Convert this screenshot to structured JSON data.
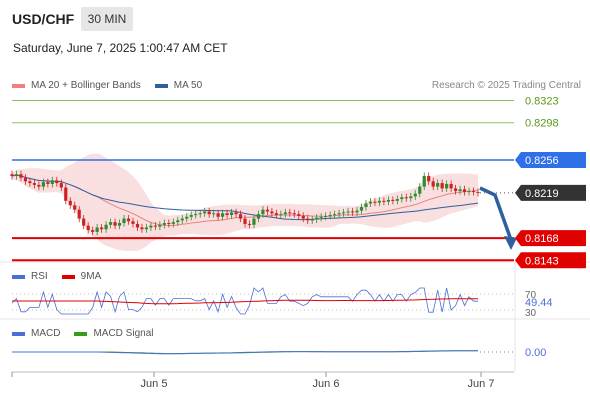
{
  "header": {
    "symbol": "USD/CHF",
    "timeframe": "30 MIN",
    "datetime": "Saturday, June 7, 2025 1:00:47 AM CET",
    "research": "Research © 2025 Trading Central"
  },
  "legend_main": [
    {
      "label": "MA 20 + Bollinger Bands",
      "color": "#f08080"
    },
    {
      "label": "MA 50",
      "color": "#2f5f9e"
    }
  ],
  "legend_rsi": [
    {
      "label": "RSI",
      "color": "#4a6fd8"
    },
    {
      "label": "9MA",
      "color": "#e00000"
    }
  ],
  "legend_macd": [
    {
      "label": "MACD",
      "color": "#4a6fd8"
    },
    {
      "label": "MACD Signal",
      "color": "#3a9a1a"
    }
  ],
  "colors": {
    "green_level": "#8fc060",
    "blue_level": "#2f6fe8",
    "red_level": "#e00000",
    "arrow": "#2f5f9e",
    "current": "#333333",
    "candle_up": "#2e8b2e",
    "candle_down": "#cc2222"
  },
  "chart_data": {
    "type": "candlestick",
    "x_ticks": [
      "Jun 5",
      "Jun 6",
      "Jun 7"
    ],
    "y_range": [
      0.813,
      0.834
    ],
    "levels": [
      {
        "value": 0.8323,
        "label": "0.8323",
        "kind": "resistance"
      },
      {
        "value": 0.8298,
        "label": "0.8298",
        "kind": "resistance"
      },
      {
        "value": 0.8256,
        "label": "0.8256",
        "kind": "pivot"
      },
      {
        "value": 0.8219,
        "label": "0.8219",
        "kind": "current"
      },
      {
        "value": 0.8168,
        "label": "0.8168",
        "kind": "support"
      },
      {
        "value": 0.8143,
        "label": "0.8143",
        "kind": "support"
      }
    ],
    "closes": [
      0.8238,
      0.824,
      0.8236,
      0.8232,
      0.823,
      0.8228,
      0.8226,
      0.8231,
      0.8229,
      0.8233,
      0.823,
      0.8225,
      0.821,
      0.8205,
      0.82,
      0.819,
      0.8182,
      0.8177,
      0.8175,
      0.818,
      0.8178,
      0.8183,
      0.8186,
      0.8182,
      0.8185,
      0.819,
      0.8187,
      0.8184,
      0.818,
      0.8178,
      0.818,
      0.8182,
      0.8181,
      0.8183,
      0.8185,
      0.8184,
      0.8186,
      0.8188,
      0.819,
      0.8192,
      0.8194,
      0.8195,
      0.8196,
      0.8198,
      0.8195,
      0.8196,
      0.8192,
      0.8196,
      0.8194,
      0.8197,
      0.8195,
      0.819,
      0.8184,
      0.8183,
      0.819,
      0.8195,
      0.82,
      0.8198,
      0.8196,
      0.8194,
      0.8195,
      0.8197,
      0.8196,
      0.8195,
      0.8193,
      0.819,
      0.8188,
      0.8189,
      0.8191,
      0.8192,
      0.8193,
      0.8194,
      0.8195,
      0.8196,
      0.8197,
      0.8198,
      0.8197,
      0.8199,
      0.8203,
      0.8207,
      0.8209,
      0.8208,
      0.821,
      0.8209,
      0.8211,
      0.821,
      0.8212,
      0.8214,
      0.8213,
      0.8215,
      0.8218,
      0.8226,
      0.8238,
      0.8232,
      0.8226,
      0.823,
      0.8224,
      0.8229,
      0.8224,
      0.8221,
      0.8223,
      0.822,
      0.8221,
      0.822,
      0.8219
    ],
    "rsi": {
      "value_label": "49.44",
      "levels": [
        "70",
        "30"
      ]
    },
    "macd": {
      "value_label": "0.00"
    }
  }
}
